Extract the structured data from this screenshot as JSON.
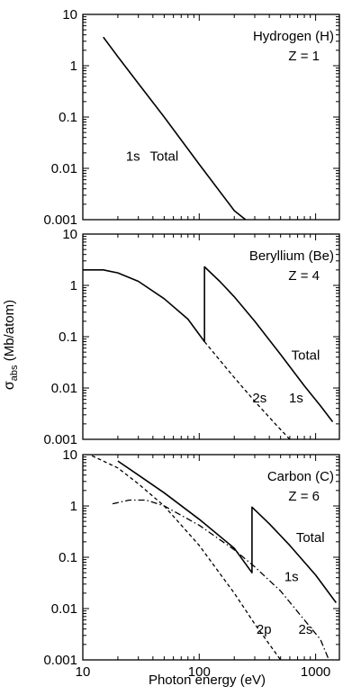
{
  "chart_data": {
    "type": "line",
    "xlabel": "Photon energy (eV)",
    "ylabel_main": "σ",
    "ylabel_sub": "abs",
    "ylabel_rest": " (Mb/atom)",
    "x_scale": "log",
    "y_scale": "log",
    "xlim": [
      10,
      1600
    ],
    "ylim": [
      0.001,
      10
    ],
    "x_ticks": [
      {
        "value": 10,
        "label": "10"
      },
      {
        "value": 100,
        "label": "100"
      },
      {
        "value": 1000,
        "label": "1000"
      }
    ],
    "y_ticks": [
      {
        "value": 10,
        "label": "10"
      },
      {
        "value": 1,
        "label": "1"
      },
      {
        "value": 0.1,
        "label": "0.1"
      },
      {
        "value": 0.01,
        "label": "0.01"
      },
      {
        "value": 0.001,
        "label": "0.001"
      }
    ],
    "grid": false,
    "panels": [
      {
        "element": "Hydrogen (H)",
        "z_label": "Z = 1",
        "series": [
          {
            "name": "1s",
            "style": "solid",
            "points": [
              [
                15,
                3.6
              ],
              [
                20,
                1.5
              ],
              [
                30,
                0.45
              ],
              [
                50,
                0.1
              ],
              [
                100,
                0.012
              ],
              [
                200,
                0.0015
              ],
              [
                250,
                0.001
              ]
            ]
          }
        ],
        "curve_labels": [
          {
            "text": "1s",
            "x": 27,
            "y": 0.014
          },
          {
            "text": "Total",
            "x": 50,
            "y": 0.014
          }
        ]
      },
      {
        "element": "Beryllium (Be)",
        "z_label": "Z = 4",
        "series": [
          {
            "name": "Total",
            "style": "solid",
            "points": [
              [
                10,
                2.0
              ],
              [
                15,
                2.0
              ],
              [
                20,
                1.75
              ],
              [
                30,
                1.2
              ],
              [
                50,
                0.55
              ],
              [
                80,
                0.22
              ],
              [
                111,
                0.08
              ],
              [
                111,
                2.3
              ],
              [
                150,
                1.2
              ],
              [
                200,
                0.6
              ],
              [
                300,
                0.2
              ],
              [
                500,
                0.045
              ],
              [
                800,
                0.011
              ],
              [
                1100,
                0.0045
              ],
              [
                1400,
                0.0022
              ]
            ]
          },
          {
            "name": "2s",
            "style": "dashed",
            "points": [
              [
                111,
                0.08
              ],
              [
                150,
                0.035
              ],
              [
                200,
                0.016
              ],
              [
                300,
                0.0055
              ],
              [
                450,
                0.002
              ],
              [
                600,
                0.001
              ]
            ]
          }
        ],
        "curve_labels": [
          {
            "text": "2s",
            "x": 330,
            "y": 0.0052
          },
          {
            "text": "1s",
            "x": 680,
            "y": 0.0052
          },
          {
            "text": "Total",
            "x": 820,
            "y": 0.036
          }
        ]
      },
      {
        "element": "Carbon (C)",
        "z_label": "Z = 6",
        "series": [
          {
            "name": "Total",
            "style": "solid",
            "points": [
              [
                20,
                7.5
              ],
              [
                30,
                4.0
              ],
              [
                50,
                1.8
              ],
              [
                100,
                0.55
              ],
              [
                200,
                0.15
              ],
              [
                284,
                0.05
              ],
              [
                284,
                0.95
              ],
              [
                400,
                0.45
              ],
              [
                600,
                0.17
              ],
              [
                1000,
                0.045
              ],
              [
                1500,
                0.013
              ]
            ]
          },
          {
            "name": "2p",
            "style": "dashed",
            "points": [
              [
                12,
                9.5
              ],
              [
                20,
                5.5
              ],
              [
                30,
                2.7
              ],
              [
                50,
                1.0
              ],
              [
                100,
                0.17
              ],
              [
                200,
                0.02
              ],
              [
                300,
                0.005
              ],
              [
                500,
                0.001
              ]
            ]
          },
          {
            "name": "2s",
            "style": "dashdot",
            "points": [
              [
                18,
                1.1
              ],
              [
                25,
                1.3
              ],
              [
                35,
                1.3
              ],
              [
                50,
                1.0
              ],
              [
                100,
                0.42
              ],
              [
                200,
                0.14
              ],
              [
                300,
                0.065
              ],
              [
                500,
                0.022
              ],
              [
                800,
                0.006
              ],
              [
                1100,
                0.0025
              ],
              [
                1300,
                0.001
              ]
            ]
          }
        ],
        "curve_labels": [
          {
            "text": "Total",
            "x": 900,
            "y": 0.2
          },
          {
            "text": "1s",
            "x": 620,
            "y": 0.034
          },
          {
            "text": "2p",
            "x": 360,
            "y": 0.0032
          },
          {
            "text": "2s",
            "x": 820,
            "y": 0.0032
          }
        ]
      }
    ]
  }
}
